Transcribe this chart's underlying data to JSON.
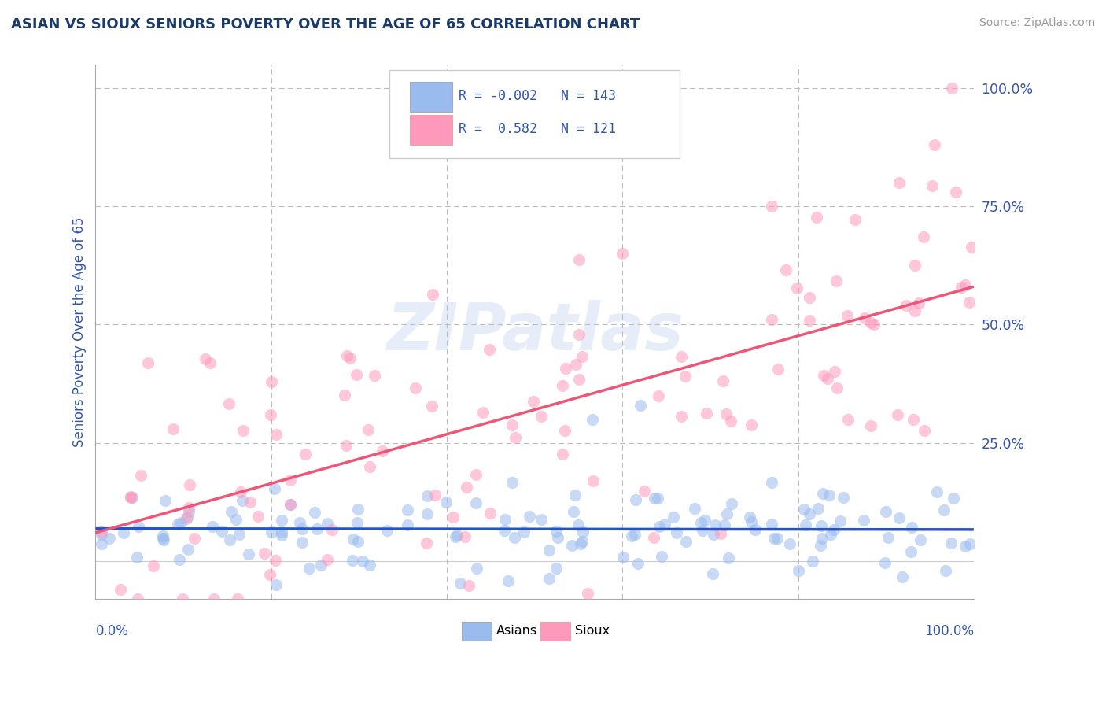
{
  "title": "ASIAN VS SIOUX SENIORS POVERTY OVER THE AGE OF 65 CORRELATION CHART",
  "source": "Source: ZipAtlas.com",
  "ylabel": "Seniors Poverty Over the Age of 65",
  "legend_r_asian": "-0.002",
  "legend_n_asian": "143",
  "legend_r_sioux": "0.582",
  "legend_n_sioux": "121",
  "color_asian": "#99BBEE",
  "color_sioux": "#FF99BB",
  "color_asian_line": "#2255CC",
  "color_sioux_line": "#EE5577",
  "title_color": "#1a3a6b",
  "axis_label_color": "#3355aa"
}
